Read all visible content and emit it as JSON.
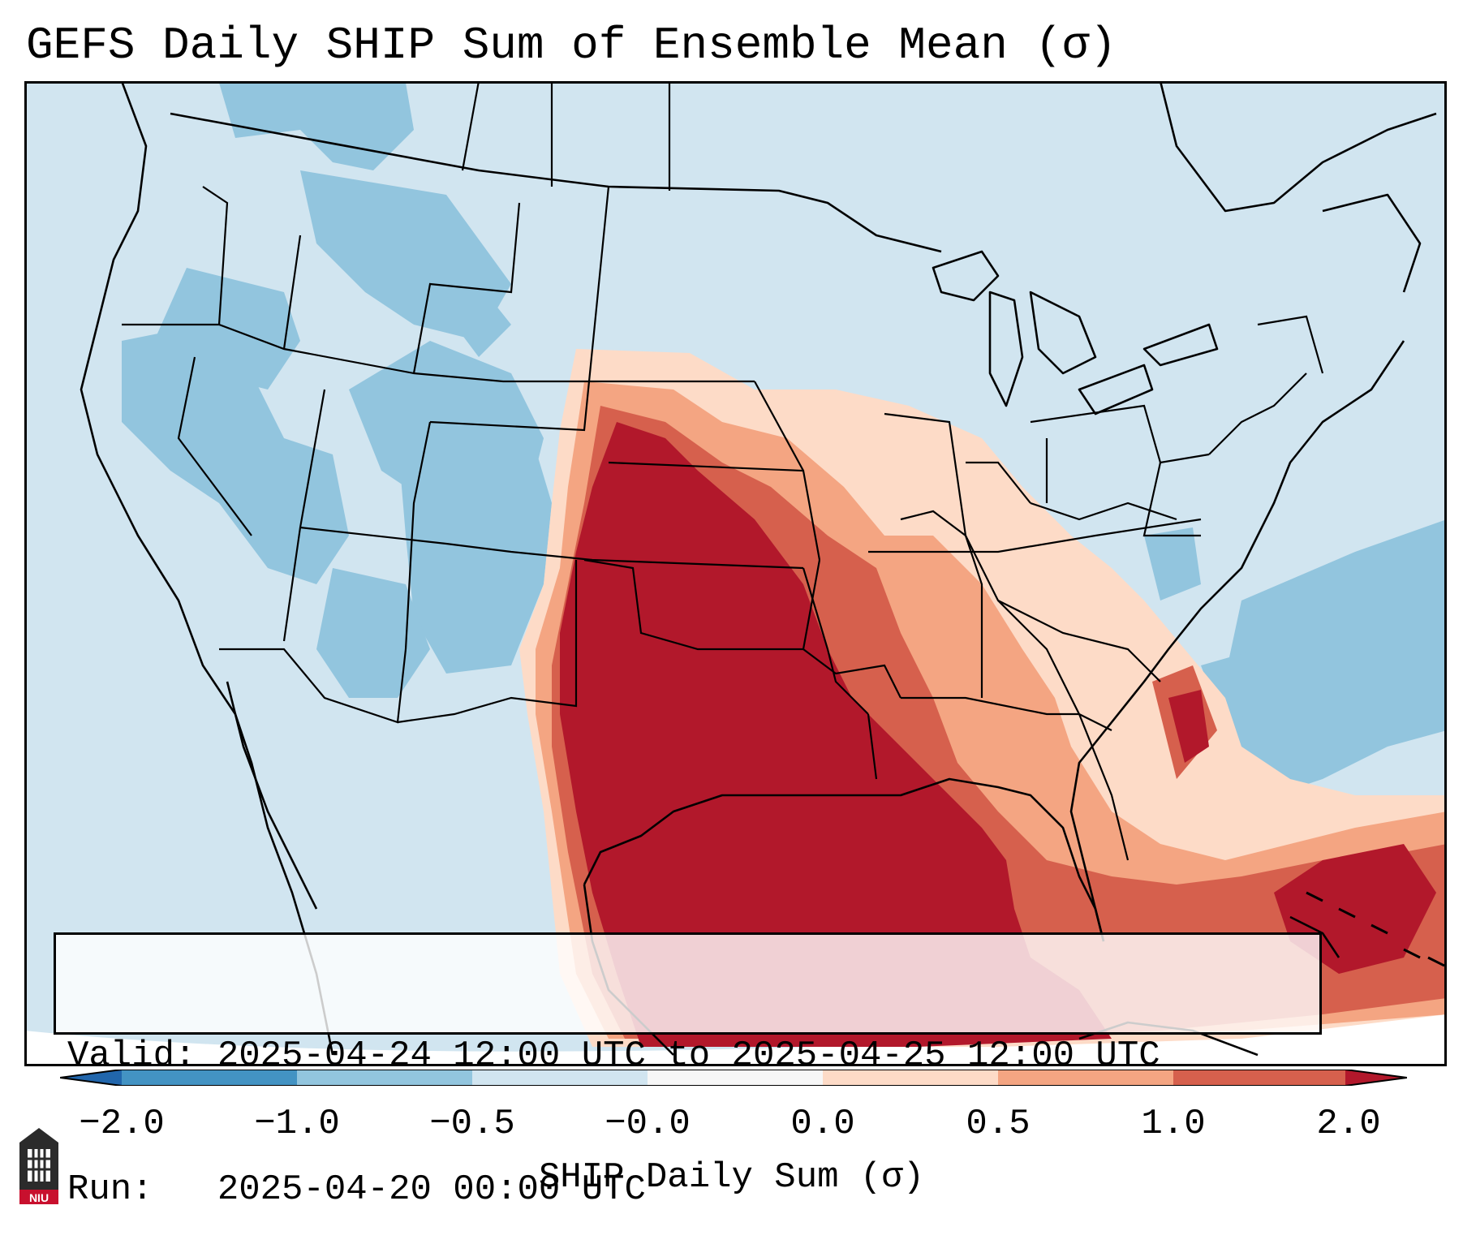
{
  "title": "GEFS Daily SHIP Sum of Ensemble Mean (σ)",
  "info": {
    "valid_label": "Valid:",
    "valid_value": "2025-04-24 12:00 UTC to 2025-04-25 12:00 UTC",
    "run_label": "Run:",
    "run_value": "2025-04-20 00:00 UTC"
  },
  "colorbar": {
    "label": "SHIP Daily Sum (σ)",
    "ticks": [
      "−2.0",
      "−1.0",
      "−0.5",
      "−0.0",
      "0.0",
      "0.5",
      "1.0",
      "2.0"
    ],
    "colors": {
      "below": "#2166ac",
      "c1": "#4393c3",
      "c2": "#92c5de",
      "c3": "#d1e5f0",
      "c4": "#f7f7f7",
      "c5": "#fddbc7",
      "c6": "#f4a582",
      "c7": "#d6604d",
      "above": "#b2182b"
    }
  },
  "map": {
    "ocean_color": "#d1e5f0",
    "border_color": "#000000"
  },
  "logo": {
    "text": "NIU"
  }
}
